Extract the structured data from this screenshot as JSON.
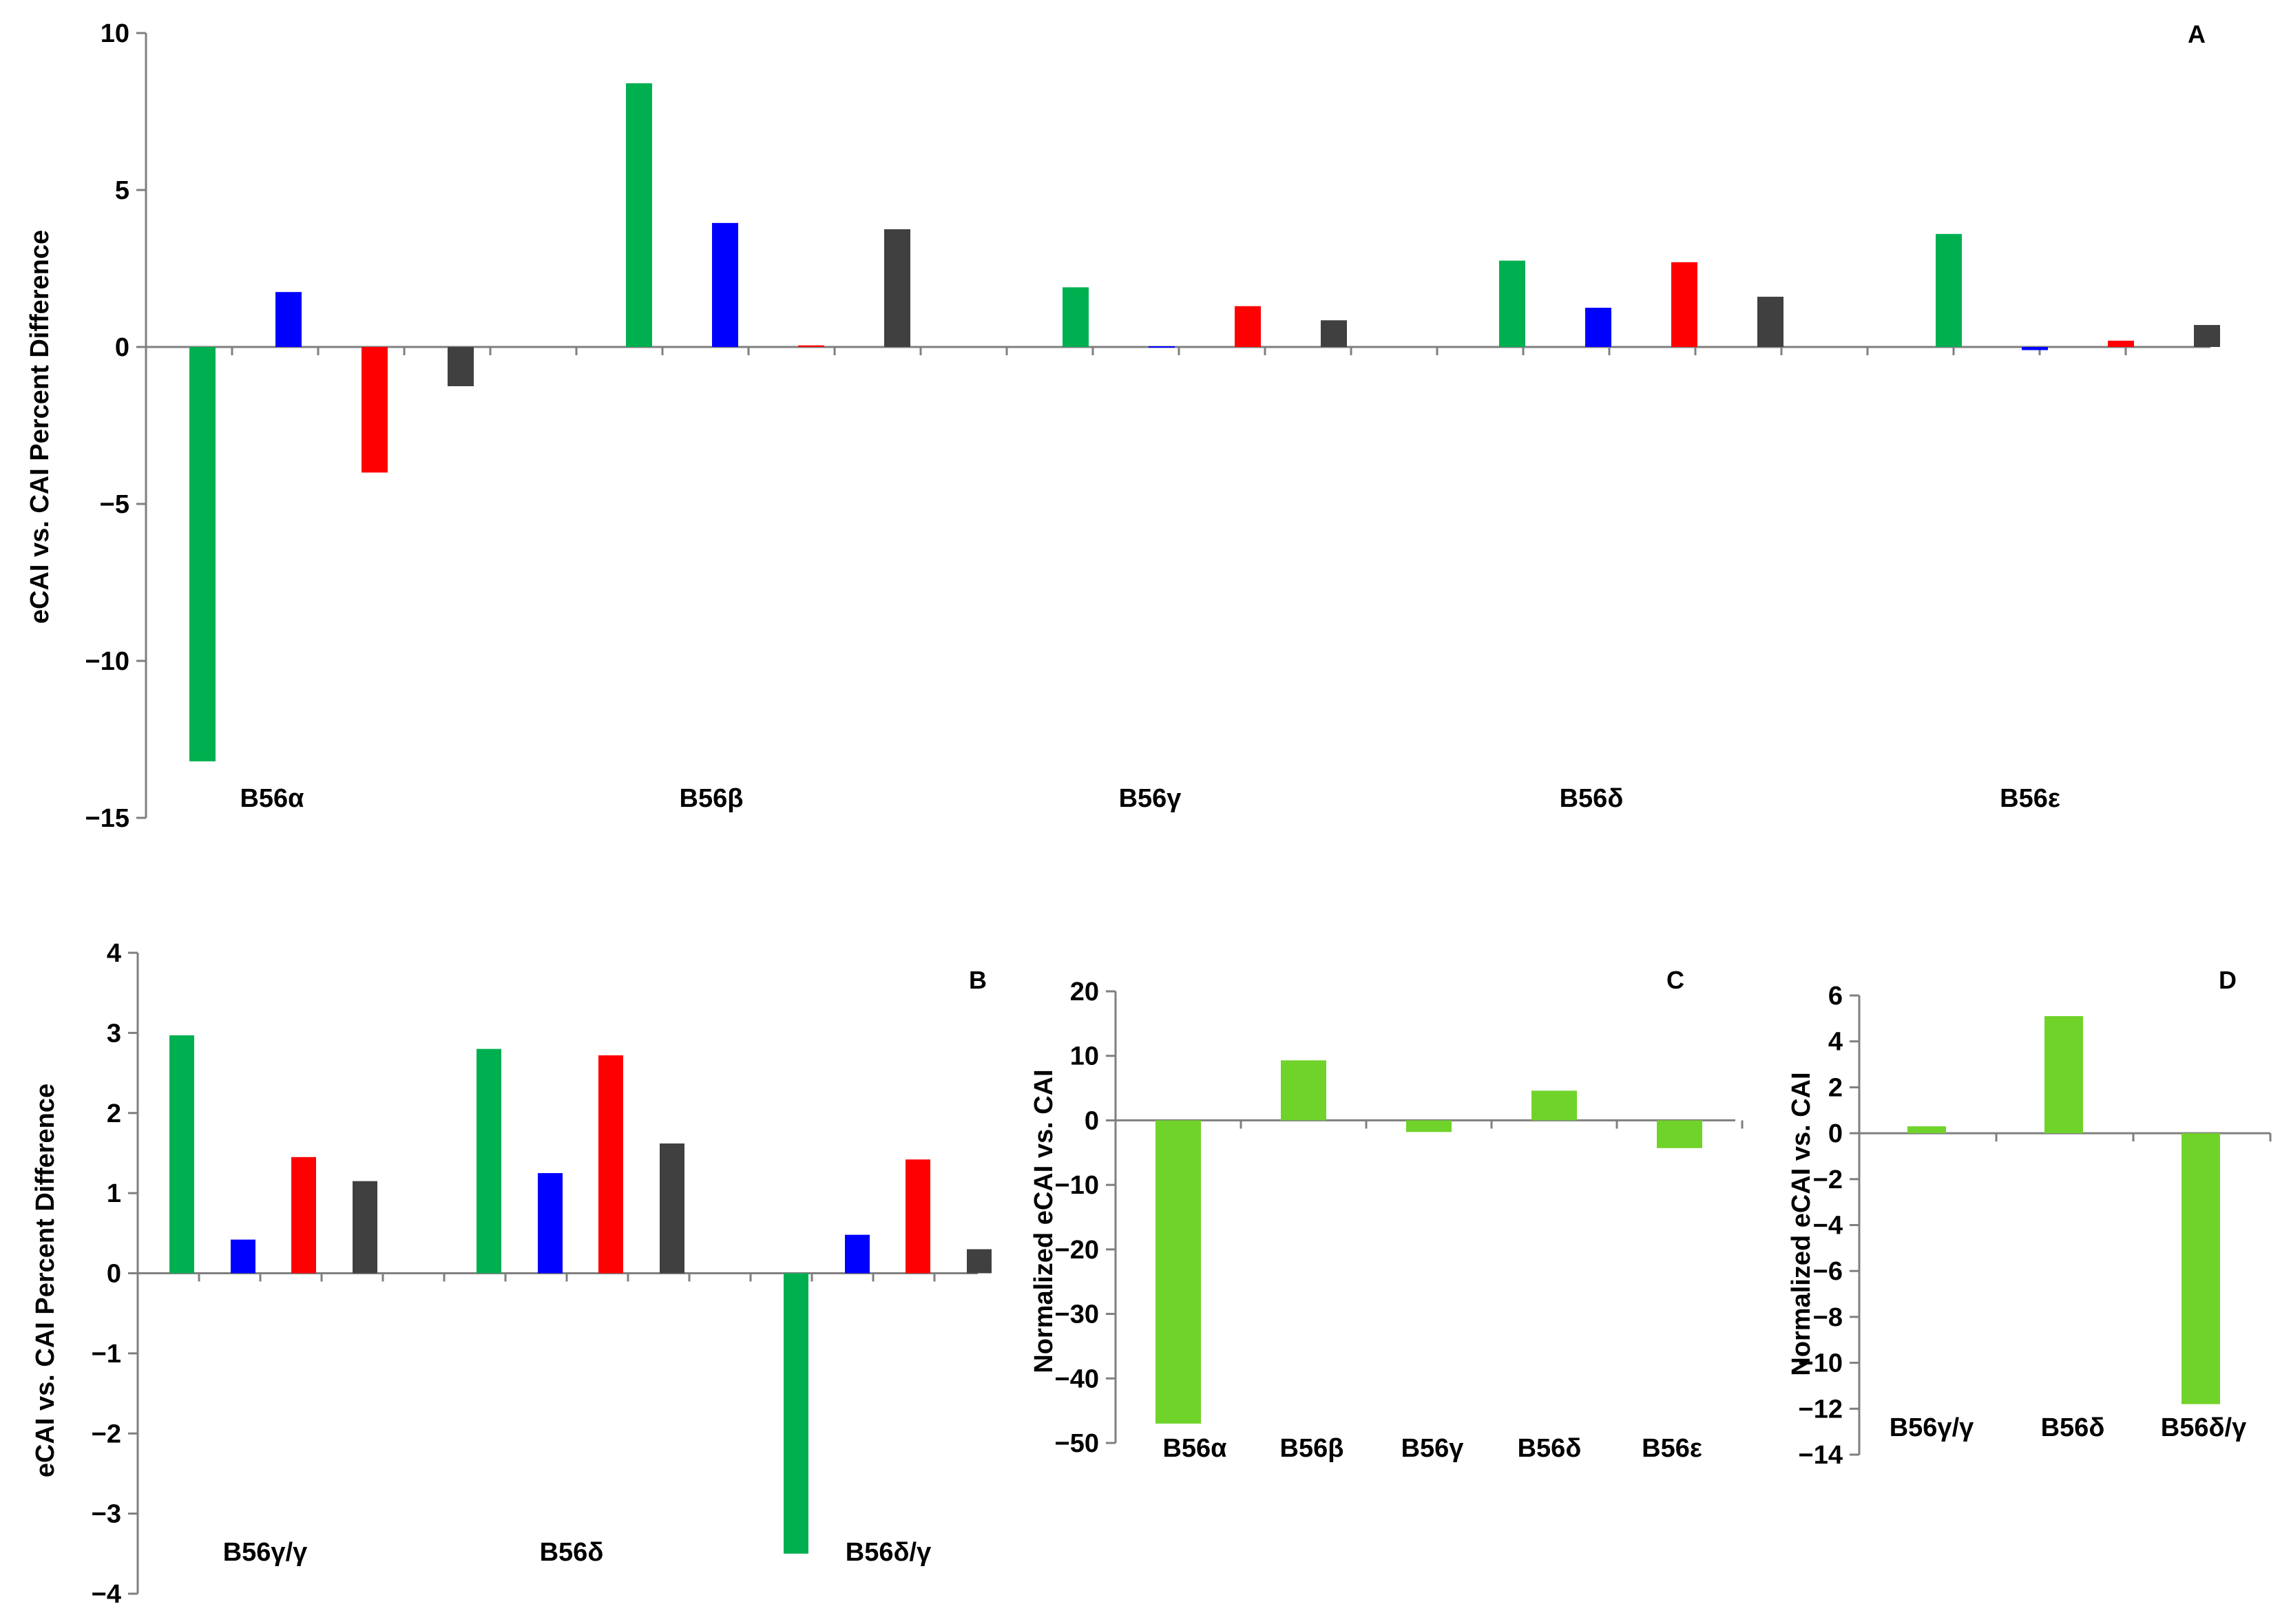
{
  "figure": {
    "colors": {
      "green": "#00b050",
      "blue": "#0000ff",
      "red": "#ff0000",
      "dark": "#404040",
      "lightgreen": "#70d32a"
    }
  },
  "chart_data": [
    {
      "panel_label": "A",
      "type": "bar",
      "ylabel": "eCAI vs. CAI Percent Difference",
      "ylim": [
        -15,
        10
      ],
      "yticks": [
        10,
        5,
        0,
        -5,
        -10,
        -15
      ],
      "categories": [
        "B56α",
        "B56β",
        "B56γ",
        "B56δ",
        "B56ε"
      ],
      "series": [
        {
          "color": "#00b050",
          "values": [
            -13.2,
            8.4,
            1.9,
            2.75,
            3.6
          ]
        },
        {
          "color": "#0000ff",
          "values": [
            1.75,
            3.95,
            0,
            1.25,
            -0.1
          ]
        },
        {
          "color": "#ff0000",
          "values": [
            -4.0,
            0.05,
            1.3,
            2.7,
            0.2
          ]
        },
        {
          "color": "#404040",
          "values": [
            -1.25,
            3.75,
            0.85,
            1.6,
            0.7
          ]
        }
      ]
    },
    {
      "panel_label": "B",
      "type": "bar",
      "ylabel": "eCAI vs. CAI Percent Difference",
      "ylim": [
        -4,
        4
      ],
      "yticks": [
        4,
        3,
        2,
        1,
        0,
        -1,
        -2,
        -3,
        -4
      ],
      "categories": [
        "B56γ/γ",
        "B56δ",
        "B56δ/γ"
      ],
      "series": [
        {
          "color": "#00b050",
          "values": [
            2.97,
            2.8,
            -3.5
          ]
        },
        {
          "color": "#0000ff",
          "values": [
            0.42,
            1.25,
            0.48
          ]
        },
        {
          "color": "#ff0000",
          "values": [
            1.45,
            2.72,
            1.42
          ]
        },
        {
          "color": "#404040",
          "values": [
            1.15,
            1.62,
            0.3
          ]
        }
      ]
    },
    {
      "panel_label": "C",
      "type": "bar",
      "ylabel": "Normalized eCAI vs. CAI",
      "ylim": [
        -50,
        20
      ],
      "yticks": [
        20,
        10,
        0,
        -10,
        -20,
        -30,
        -40,
        -50
      ],
      "categories": [
        "B56α",
        "B56β",
        "B56γ",
        "B56δ",
        "B56ε"
      ],
      "series": [
        {
          "color": "#70d32a",
          "values": [
            -47,
            9.3,
            -1.8,
            4.6,
            -4.3
          ]
        }
      ]
    },
    {
      "panel_label": "D",
      "type": "bar",
      "ylabel": "Normalized eCAI vs. CAI",
      "ylim": [
        -14,
        6
      ],
      "yticks": [
        6,
        4,
        2,
        0,
        -2,
        -4,
        -6,
        -8,
        -10,
        -12,
        -14
      ],
      "categories": [
        "B56γ/γ",
        "B56δ",
        "B56δ/γ"
      ],
      "series": [
        {
          "color": "#70d32a",
          "values": [
            0.3,
            5.1,
            -11.8
          ]
        }
      ]
    }
  ]
}
